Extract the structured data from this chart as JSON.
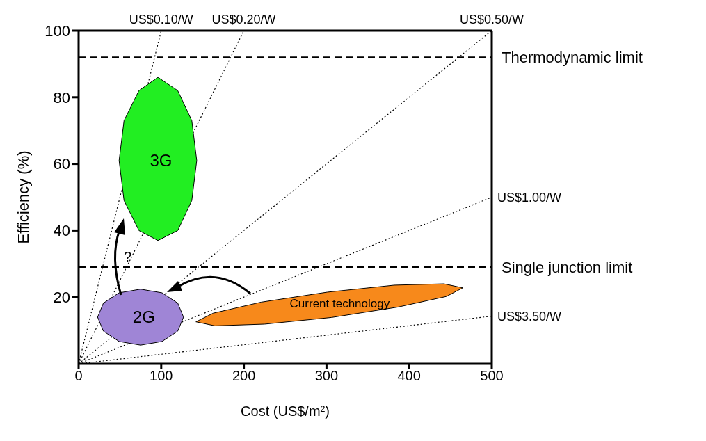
{
  "chart_data": {
    "type": "line",
    "xlabel": "Cost (US$/m²)",
    "ylabel": "Efficiency (%)",
    "xlim": [
      0,
      500
    ],
    "xticks": [
      0,
      100,
      200,
      300,
      400,
      500
    ],
    "ylim": [
      0,
      100
    ],
    "yticks": [
      20,
      40,
      60,
      80,
      100
    ],
    "grid": false,
    "legend": false,
    "marker": "none",
    "series": [
      {
        "name": "US$0.10/W",
        "type": "line",
        "line_style": "dotted",
        "color": "#000000",
        "x": [
          0,
          100
        ],
        "values": [
          0,
          100
        ]
      },
      {
        "name": "US$0.20/W",
        "type": "line",
        "line_style": "dotted",
        "color": "#000000",
        "x": [
          0,
          200
        ],
        "values": [
          0,
          100
        ]
      },
      {
        "name": "US$0.50/W",
        "type": "line",
        "line_style": "dotted",
        "color": "#000000",
        "x": [
          0,
          500
        ],
        "values": [
          0,
          100
        ]
      },
      {
        "name": "US$1.00/W",
        "type": "line",
        "line_style": "dotted",
        "color": "#000000",
        "x": [
          0,
          500
        ],
        "values": [
          0,
          50
        ]
      },
      {
        "name": "US$3.50/W",
        "type": "line",
        "line_style": "dotted",
        "color": "#000000",
        "x": [
          0,
          500
        ],
        "values": [
          0,
          14.3
        ]
      },
      {
        "name": "3G",
        "type": "area",
        "color": "#22ee22",
        "x": [
          143,
          137,
          120,
          96,
          73,
          55,
          49,
          55,
          73,
          96,
          120,
          137,
          143
        ],
        "values": [
          61,
          73,
          82,
          86,
          82,
          73,
          61,
          49,
          40,
          37,
          40,
          49,
          61
        ]
      },
      {
        "name": "2G",
        "type": "area",
        "color": "#9f85d6",
        "x": [
          127,
          120,
          101,
          75,
          49,
          30,
          23,
          30,
          49,
          75,
          101,
          120,
          127
        ],
        "values": [
          14,
          18.2,
          21.3,
          22.4,
          21.3,
          18.2,
          14,
          9.8,
          6.7,
          5.6,
          6.7,
          9.8,
          14
        ]
      },
      {
        "name": "Current technology",
        "type": "area",
        "color": "#f7891b",
        "x": [
          465,
          442,
          382,
          301,
          221,
          163,
          142,
          165,
          225,
          306,
          386,
          445,
          465
        ],
        "values": [
          22.8,
          24,
          23.6,
          21.5,
          18.5,
          15.2,
          12.6,
          11.4,
          11.9,
          13.9,
          17,
          20.2,
          22.8
        ]
      }
    ],
    "ref_lines": [
      {
        "axis": "y",
        "value": 92,
        "label": "Thermodynamic limit",
        "line_style": "dashed"
      },
      {
        "axis": "y",
        "value": 29,
        "label": "Single junction limit",
        "line_style": "dashed"
      }
    ],
    "annotations": [
      "?"
    ]
  }
}
